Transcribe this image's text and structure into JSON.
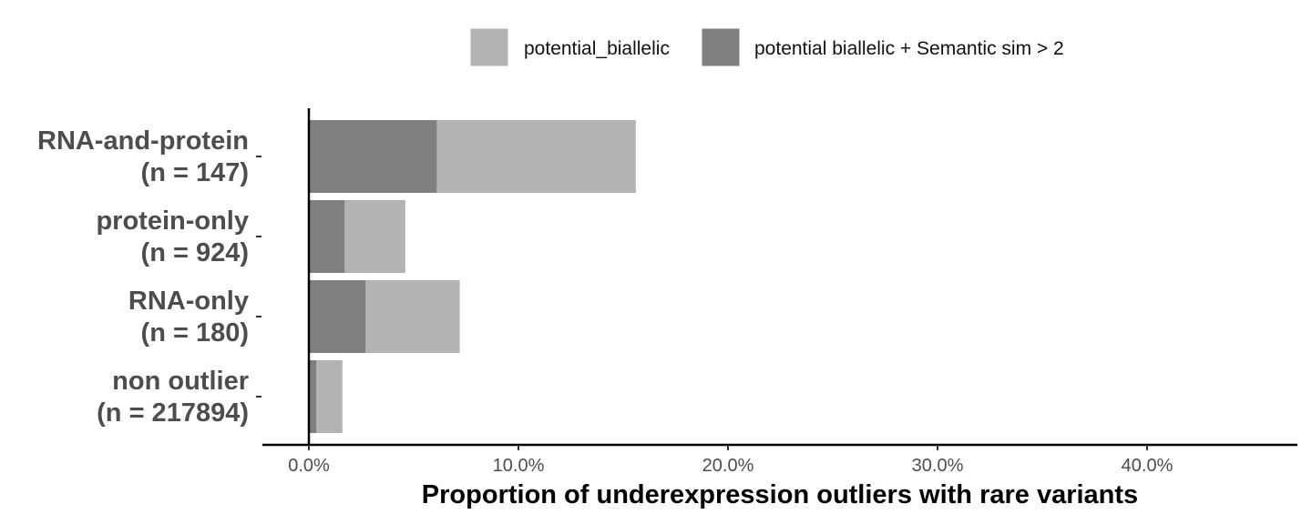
{
  "chart_data": {
    "type": "bar",
    "orientation": "horizontal",
    "stacked": true,
    "categories": [
      {
        "name": "RNA-and-protein",
        "n_label": "(n = 147)"
      },
      {
        "name": "protein-only",
        "n_label": "(n = 924)"
      },
      {
        "name": "RNA-only",
        "n_label": "(n = 180)"
      },
      {
        "name": "non outlier",
        "n_label": "(n = 217894)"
      }
    ],
    "series": [
      {
        "name": "potential_biallelic",
        "color": "#b3b3b3",
        "values": [
          15.6,
          4.6,
          7.2,
          1.6
        ]
      },
      {
        "name": "potential biallelic + Semantic sim > 2",
        "color": "#7f7f7f",
        "values": [
          6.1,
          1.7,
          2.7,
          0.35
        ]
      }
    ],
    "xlabel": "Proportion of underexpression outliers with rare variants",
    "ylabel": "",
    "xlim": [
      0,
      47
    ],
    "x_ticks": [
      {
        "value": 0,
        "label": "0.0%"
      },
      {
        "value": 10,
        "label": "10.0%"
      },
      {
        "value": 20,
        "label": "20.0%"
      },
      {
        "value": 30,
        "label": "30.0%"
      },
      {
        "value": 40,
        "label": "40.0%"
      }
    ],
    "legend_position": "top",
    "grid": false
  }
}
